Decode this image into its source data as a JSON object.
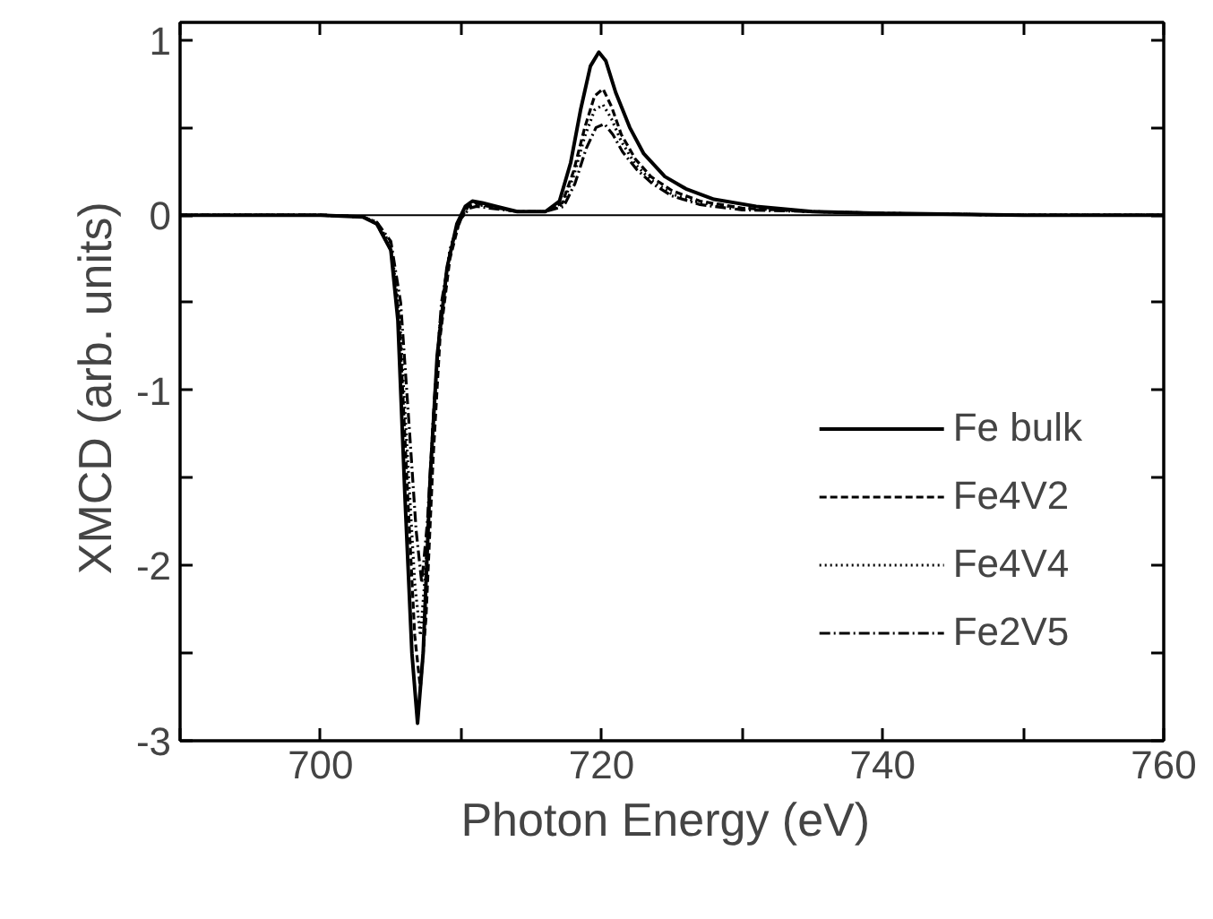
{
  "chart_data": {
    "type": "line",
    "xlabel": "Photon Energy  (eV)",
    "ylabel": "XMCD  (arb. units)",
    "xlim": [
      690,
      760
    ],
    "ylim": [
      -3,
      1.1
    ],
    "xticks": [
      {
        "value": 690,
        "label": null
      },
      700,
      {
        "value": 710,
        "label": null
      },
      720,
      {
        "value": 730,
        "label": null
      },
      740,
      {
        "value": 750,
        "label": null
      },
      760
    ],
    "yticks": [
      -3,
      {
        "value": -2.5,
        "label": null
      },
      -2,
      {
        "value": -1.5,
        "label": null
      },
      -1,
      {
        "value": -0.5,
        "label": null
      },
      0,
      {
        "value": 0.5,
        "label": null
      },
      1
    ],
    "grid": false,
    "legend": "bottom right",
    "marker": "none",
    "ref_lines": [
      {
        "axis": "y",
        "value": 0,
        "color": "#000000",
        "line_style": "solid"
      }
    ],
    "series": [
      {
        "name": "Fe bulk",
        "color": "#000000",
        "line_style": "solid",
        "x": [
          690,
          695,
          700,
          703,
          704,
          705,
          705.5,
          706,
          706.5,
          706.9,
          707.3,
          707.8,
          708.3,
          709,
          709.7,
          710.3,
          710.8,
          711.5,
          712.5,
          714,
          716,
          717,
          717.8,
          718.5,
          719.2,
          719.8,
          720.3,
          721,
          722,
          723,
          724.5,
          726,
          728,
          731,
          735,
          740,
          750,
          760
        ],
        "values": [
          0,
          0,
          0,
          -0.01,
          -0.05,
          -0.2,
          -0.6,
          -1.6,
          -2.5,
          -2.9,
          -2.5,
          -1.5,
          -0.8,
          -0.3,
          -0.05,
          0.05,
          0.08,
          0.07,
          0.05,
          0.02,
          0.02,
          0.08,
          0.3,
          0.6,
          0.85,
          0.93,
          0.88,
          0.7,
          0.5,
          0.35,
          0.22,
          0.15,
          0.09,
          0.05,
          0.02,
          0.01,
          0,
          0
        ]
      },
      {
        "name": "Fe4V2",
        "color": "#000000",
        "line_style": "dashed",
        "x": [
          690,
          695,
          700,
          703,
          704,
          705,
          705.6,
          706.2,
          706.7,
          707.1,
          707.5,
          708,
          708.5,
          709.2,
          709.9,
          710.5,
          711,
          712,
          714,
          716,
          717.2,
          718,
          718.8,
          719.5,
          720.1,
          720.7,
          721.4,
          722.4,
          723.5,
          725,
          727,
          730,
          735,
          740,
          750,
          760
        ],
        "values": [
          0,
          0,
          0,
          -0.01,
          -0.05,
          -0.2,
          -0.6,
          -1.6,
          -2.4,
          -2.7,
          -2.3,
          -1.4,
          -0.7,
          -0.25,
          -0.03,
          0.05,
          0.07,
          0.05,
          0.02,
          0.02,
          0.07,
          0.25,
          0.5,
          0.68,
          0.72,
          0.62,
          0.46,
          0.32,
          0.22,
          0.14,
          0.08,
          0.04,
          0.02,
          0.01,
          0,
          0
        ]
      },
      {
        "name": "Fe4V4",
        "color": "#000000",
        "line_style": "dotted",
        "x": [
          690,
          695,
          700,
          703,
          704,
          705,
          705.6,
          706.2,
          706.7,
          707.1,
          707.5,
          708,
          708.5,
          709.2,
          709.9,
          710.5,
          711,
          712,
          714,
          716,
          717.2,
          718,
          718.8,
          719.5,
          720.1,
          720.7,
          721.4,
          722.4,
          723.5,
          725,
          727,
          730,
          735,
          740,
          750,
          760
        ],
        "values": [
          0,
          0,
          0,
          -0.01,
          -0.04,
          -0.17,
          -0.55,
          -1.4,
          -2.1,
          -2.4,
          -2.0,
          -1.2,
          -0.6,
          -0.2,
          -0.02,
          0.05,
          0.06,
          0.05,
          0.02,
          0.02,
          0.06,
          0.22,
          0.45,
          0.6,
          0.63,
          0.55,
          0.42,
          0.29,
          0.2,
          0.12,
          0.07,
          0.04,
          0.02,
          0.01,
          0,
          0
        ]
      },
      {
        "name": "Fe2V5",
        "color": "#000000",
        "line_style": "dashdot",
        "x": [
          690,
          695,
          700,
          703,
          704,
          705,
          705.7,
          706.3,
          706.8,
          707.2,
          707.6,
          708.1,
          708.6,
          709.3,
          710,
          710.6,
          711.1,
          712,
          714,
          716,
          717.3,
          718.1,
          718.9,
          719.6,
          720.2,
          720.8,
          721.5,
          722.5,
          723.6,
          725,
          727,
          730,
          735,
          740,
          750,
          760
        ],
        "values": [
          0,
          0,
          0,
          -0.01,
          -0.04,
          -0.15,
          -0.5,
          -1.2,
          -1.8,
          -2.1,
          -1.75,
          -1.05,
          -0.5,
          -0.17,
          -0.02,
          0.04,
          0.05,
          0.04,
          0.02,
          0.02,
          0.05,
          0.18,
          0.38,
          0.5,
          0.52,
          0.46,
          0.36,
          0.26,
          0.18,
          0.11,
          0.06,
          0.03,
          0.02,
          0.01,
          0,
          0
        ]
      }
    ]
  }
}
